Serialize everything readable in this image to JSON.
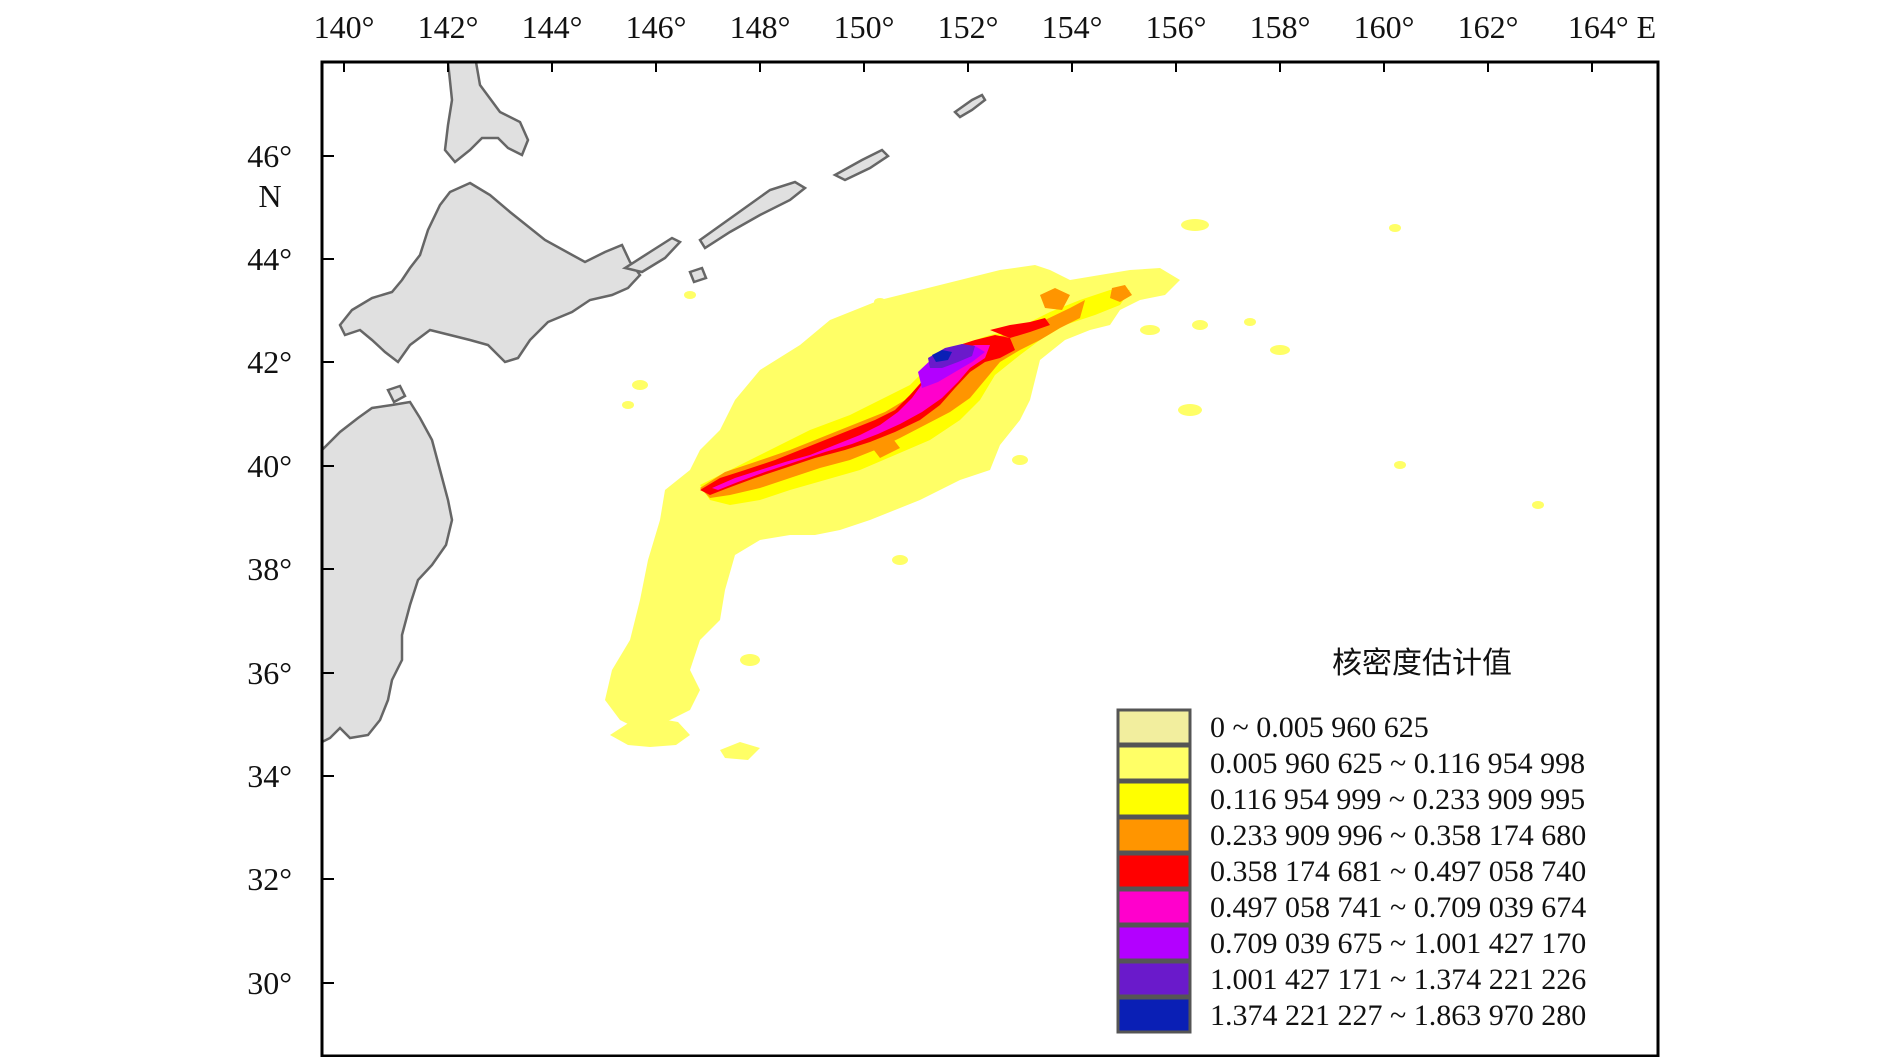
{
  "map": {
    "lon_labels": [
      "140°",
      "142°",
      "144°",
      "146°",
      "148°",
      "150°",
      "152°",
      "154°",
      "156°",
      "158°",
      "160°",
      "162°",
      "164° E"
    ],
    "lat_labels": [
      "46°",
      "44°",
      "42°",
      "40°",
      "38°",
      "36°",
      "34°",
      "32°",
      "30°"
    ],
    "lat_unit": "N",
    "land_color": "#e0e0e0",
    "land_stroke": "#666666"
  },
  "legend": {
    "title": "核密度估计值",
    "items": [
      {
        "label": "0 ~ 0.005 960 625",
        "color": "#f2ee9e"
      },
      {
        "label": "0.005 960 625 ~ 0.116 954 998",
        "color": "#ffff66"
      },
      {
        "label": "0.116 954 999 ~ 0.233 909 995",
        "color": "#ffff00"
      },
      {
        "label": "0.233 909 996 ~ 0.358 174 680",
        "color": "#ff9500"
      },
      {
        "label": "0.358 174 681 ~ 0.497 058 740",
        "color": "#ff0000"
      },
      {
        "label": "0.497 058 741 ~ 0.709 039 674",
        "color": "#ff00cc"
      },
      {
        "label": "0.709 039 675 ~ 1.001 427 170",
        "color": "#b300ff"
      },
      {
        "label": "1.001 427 171 ~ 1.374 221 226",
        "color": "#6a1acb"
      },
      {
        "label": "1.374 221 227 ~ 1.863 970 280",
        "color": "#0a1fb5"
      }
    ]
  }
}
